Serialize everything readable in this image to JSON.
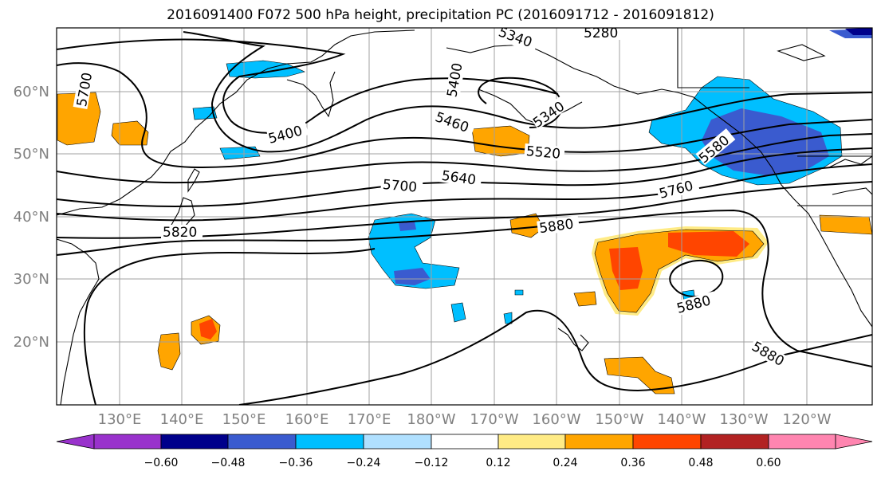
{
  "title": "2016091400 F072 500 hPa height, precipitation PC (2016091712 - 2016091812)",
  "map": {
    "lon_labels": [
      "130°E",
      "140°E",
      "150°E",
      "160°E",
      "170°E",
      "180°W",
      "170°W",
      "160°W",
      "150°W",
      "140°W",
      "130°W",
      "120°W"
    ],
    "lat_labels": [
      "60°N",
      "50°N",
      "40°N",
      "30°N",
      "20°N"
    ],
    "height_contour_labels": [
      "5280",
      "5340",
      "5400",
      "5460",
      "5520",
      "5580",
      "5640",
      "5700",
      "5760",
      "5820",
      "5880"
    ],
    "legend_colors": [
      "#9932CC",
      "#00008B",
      "#3A5BCF",
      "#00BFFF",
      "#B0E0FF",
      "#FFFFFF",
      "#FFEB85",
      "#FFA500",
      "#FF4500",
      "#B22222",
      "#FF85B0"
    ],
    "colorbar_ticks": [
      "−0.60",
      "−0.48",
      "−0.36",
      "−0.24",
      "−0.12",
      "0.12",
      "0.24",
      "0.36",
      "0.48",
      "0.60"
    ]
  }
}
